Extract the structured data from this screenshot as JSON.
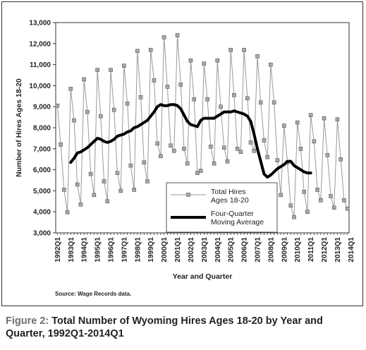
{
  "chart_data": {
    "type": "line",
    "xlabel": "Year and Quarter",
    "ylabel": "Number of Hires Ages 18-20",
    "ylim": [
      3000,
      13000
    ],
    "yticks": [
      3000,
      4000,
      5000,
      6000,
      7000,
      8000,
      9000,
      10000,
      11000,
      12000,
      13000
    ],
    "ytick_labels": [
      "3,000",
      "4,000",
      "5,000",
      "6,000",
      "7,000",
      "8,000",
      "9,000",
      "10,000",
      "11,000",
      "12,000",
      "13,000"
    ],
    "x_tick_labels": [
      "1992Q1",
      "1993Q1",
      "1994Q1",
      "1995Q1",
      "1996Q1",
      "1997Q1",
      "1998Q1",
      "1999Q1",
      "2000Q1",
      "2001Q1",
      "2002Q1",
      "2003Q1",
      "2004Q1",
      "2005Q1",
      "2006Q1",
      "2007Q1",
      "2008Q1",
      "2009Q1",
      "2010Q1",
      "2011Q1",
      "2012Q1",
      "2013Q1",
      "2014Q1"
    ],
    "grid": false,
    "legend_position": "center-right",
    "series": [
      {
        "name": "Total Hires Ages 18-20",
        "color": "#999999",
        "marker": "square",
        "values": [
          9050,
          7200,
          5050,
          3980,
          9850,
          8350,
          5300,
          4350,
          10300,
          8750,
          5800,
          4800,
          10750,
          8550,
          5450,
          4500,
          10750,
          8850,
          5850,
          5000,
          10950,
          9150,
          6200,
          5050,
          11650,
          9450,
          6350,
          5450,
          11700,
          10250,
          7250,
          6650,
          12300,
          9950,
          7150,
          6900,
          12400,
          10050,
          7000,
          6300,
          11200,
          9350,
          5850,
          5950,
          11050,
          9350,
          7100,
          6300,
          11200,
          9000,
          7050,
          6400,
          11700,
          9550,
          7000,
          6850,
          11700,
          9400,
          7300,
          6900,
          11400,
          9200,
          7400,
          6600,
          11000,
          9200,
          6450,
          4800,
          8100,
          6350,
          4300,
          3750,
          8250,
          7000,
          4950,
          4000,
          8600,
          7350,
          5050,
          4550,
          8450,
          6700,
          4750,
          4200,
          8400,
          6500,
          4550,
          4150
        ]
      },
      {
        "name": "Four-Quarter Moving Average",
        "color": "#000000",
        "start_index": 4,
        "values": [
          6350,
          6550,
          6800,
          6850,
          6950,
          7050,
          7200,
          7350,
          7500,
          7450,
          7350,
          7300,
          7350,
          7450,
          7600,
          7650,
          7700,
          7800,
          7850,
          8000,
          8050,
          8150,
          8250,
          8350,
          8550,
          8750,
          9000,
          9100,
          9050,
          9050,
          9100,
          9100,
          9050,
          8900,
          8600,
          8300,
          8150,
          8100,
          8050,
          8350,
          8450,
          8450,
          8450,
          8450,
          8550,
          8650,
          8750,
          8750,
          8750,
          8800,
          8750,
          8700,
          8650,
          8550,
          8300,
          7700,
          7000,
          6400,
          5800,
          5650,
          5750,
          5900,
          6050,
          6150,
          6250,
          6400,
          6400,
          6200,
          6100,
          6000,
          5900,
          5850,
          5850
        ]
      }
    ],
    "legend_entries": [
      {
        "label_line1": "Total Hires",
        "label_line2": "Ages 18-20"
      },
      {
        "label_line1": "Four-Quarter",
        "label_line2": "Moving Average"
      }
    ]
  },
  "source": "Source: Wage Records data.",
  "caption": {
    "lead": "Figure 2:",
    "text": " Total Number of Wyoming Hires Ages 18-20 by Year and Quarter, 1992Q1-2014Q1"
  }
}
